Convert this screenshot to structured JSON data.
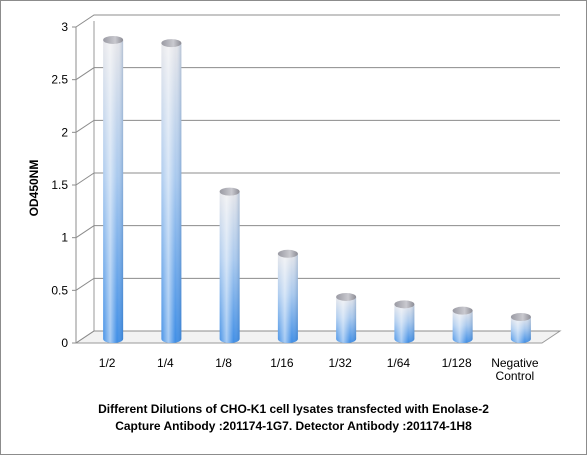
{
  "chart_data": {
    "type": "bar",
    "categories": [
      "1/2",
      "1/4",
      "1/8",
      "1/16",
      "1/32",
      "1/64",
      "1/128",
      "Negative Control"
    ],
    "category_lines": [
      [
        "1/2"
      ],
      [
        "1/4"
      ],
      [
        "1/8"
      ],
      [
        "1/16"
      ],
      [
        "1/32"
      ],
      [
        "1/64"
      ],
      [
        "1/128"
      ],
      [
        "Negative",
        "Control"
      ]
    ],
    "values": [
      2.82,
      2.79,
      1.38,
      0.79,
      0.38,
      0.31,
      0.25,
      0.19
    ],
    "ylabel": "OD450NM",
    "xlabel": "Different Dilutions of CHO-K1  cell lysates transfected with Enolase-2",
    "xlabel_line2": "Capture Antibody :201174-1G7.    Detector Antibody :201174-1H8",
    "ylim": [
      0,
      3
    ],
    "yticks": [
      "0",
      "0.5",
      "1",
      "1.5",
      "2",
      "2.5",
      "3"
    ],
    "grid": true,
    "bar_color": "#5b9bd5"
  }
}
